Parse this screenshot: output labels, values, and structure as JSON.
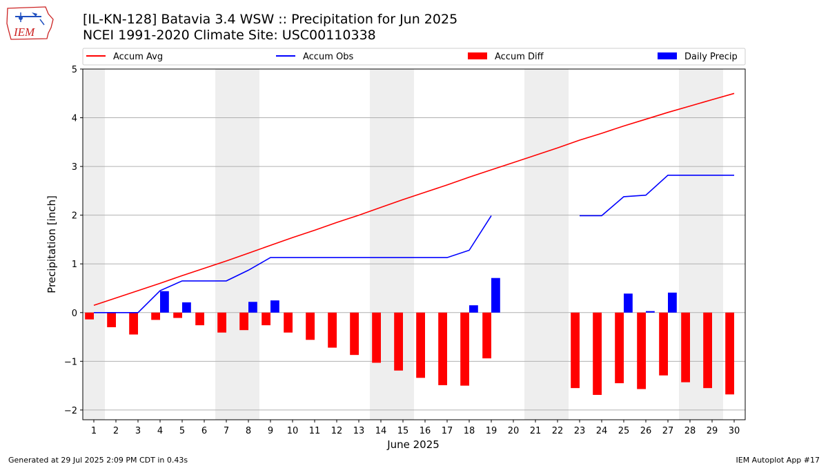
{
  "header": {
    "title_line1": "[IL-KN-128] Batavia 3.4 WSW :: Precipitation for Jun 2025",
    "title_line2": "NCEI 1991-2020 Climate Site: USC00110338",
    "logo_text": "IEM"
  },
  "footer": {
    "generated": "Generated at 29 Jul 2025 2:09 PM CDT in 0.43s",
    "app": "IEM Autoplot App #17"
  },
  "chart_data": {
    "type": "bar",
    "title": "[IL-KN-128] Batavia 3.4 WSW :: Precipitation for Jun 2025",
    "xlabel": "June 2025",
    "ylabel": "Precipitation [inch]",
    "ylim": [
      -2.2,
      5
    ],
    "yticks": [
      -2,
      -1,
      0,
      1,
      2,
      3,
      4,
      5
    ],
    "ytick_labels": [
      "−2",
      "−1",
      "0",
      "1",
      "2",
      "3",
      "4",
      "5"
    ],
    "grid": true,
    "legend_placement": "top, above plot",
    "x": [
      1,
      2,
      3,
      4,
      5,
      6,
      7,
      8,
      9,
      10,
      11,
      12,
      13,
      14,
      15,
      16,
      17,
      18,
      19,
      20,
      21,
      22,
      23,
      24,
      25,
      26,
      27,
      28,
      29,
      30
    ],
    "weekend_bands": [
      [
        1,
        1
      ],
      [
        7,
        8
      ],
      [
        14,
        15
      ],
      [
        21,
        22
      ],
      [
        28,
        29
      ]
    ],
    "series": [
      {
        "name": "Accum Avg",
        "kind": "line",
        "color": "#ff0000",
        "values": [
          0.15,
          0.3,
          0.45,
          0.6,
          0.76,
          0.91,
          1.06,
          1.22,
          1.38,
          1.54,
          1.69,
          1.85,
          2.0,
          2.16,
          2.32,
          2.47,
          2.62,
          2.78,
          2.93,
          3.08,
          3.23,
          3.38,
          3.54,
          3.68,
          3.83,
          3.97,
          4.11,
          4.24,
          4.37,
          4.5
        ]
      },
      {
        "name": "Accum Obs",
        "kind": "line",
        "color": "#0000ff",
        "values": [
          0.0,
          0.0,
          0.0,
          0.45,
          0.65,
          0.65,
          0.65,
          0.87,
          1.13,
          1.13,
          1.13,
          1.13,
          1.13,
          1.13,
          1.13,
          1.13,
          1.13,
          1.28,
          1.99,
          null,
          null,
          null,
          1.99,
          1.99,
          2.38,
          2.41,
          2.82,
          2.82,
          2.82,
          2.82
        ]
      },
      {
        "name": "Accum Diff",
        "kind": "bar",
        "color": "#ff0000",
        "offset": "left",
        "values": [
          -0.14,
          -0.3,
          -0.45,
          -0.15,
          -0.11,
          -0.26,
          -0.41,
          -0.36,
          -0.26,
          -0.41,
          -0.56,
          -0.72,
          -0.87,
          -1.03,
          -1.19,
          -1.34,
          -1.49,
          -1.5,
          -0.94,
          null,
          null,
          null,
          -1.55,
          -1.69,
          -1.45,
          -1.57,
          -1.29,
          -1.43,
          -1.55,
          -1.68
        ]
      },
      {
        "name": "Daily Precip",
        "kind": "bar",
        "color": "#0000ff",
        "offset": "right",
        "values": [
          0,
          0,
          0,
          0.44,
          0.21,
          0,
          0,
          0.22,
          0.25,
          0,
          0,
          0,
          0,
          0,
          0,
          0,
          0,
          0.15,
          0.71,
          null,
          null,
          null,
          0,
          0,
          0.39,
          0.03,
          0.41,
          0,
          0,
          0
        ]
      }
    ]
  }
}
